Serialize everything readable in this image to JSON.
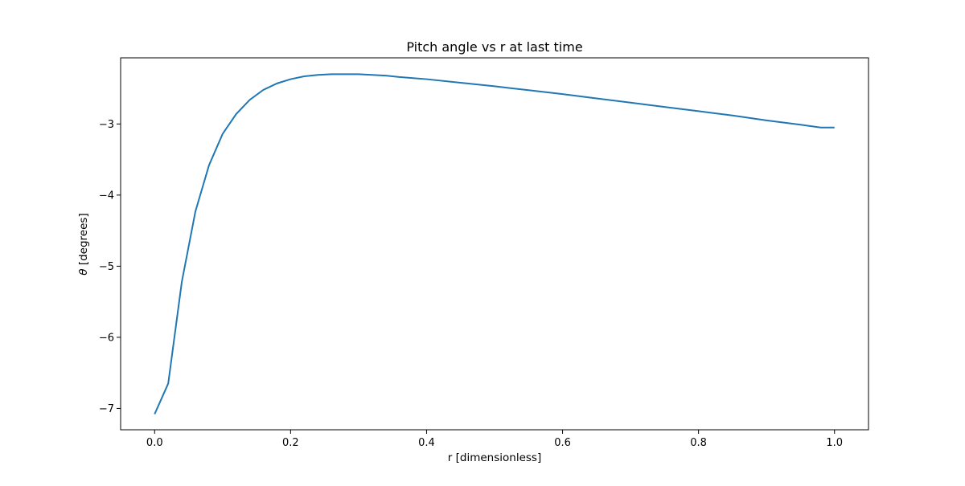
{
  "chart_data": {
    "type": "line",
    "title": "Pitch angle vs r at last time",
    "xlabel": "r [dimensionless]",
    "ylabel_symbol": "θ",
    "ylabel_text": " [degrees]",
    "xlim": [
      -0.05,
      1.05
    ],
    "ylim": [
      -7.3,
      -2.07
    ],
    "xticks": [
      0.0,
      0.2,
      0.4,
      0.6,
      0.8,
      1.0
    ],
    "xtick_labels": [
      "0.0",
      "0.2",
      "0.4",
      "0.6",
      "0.8",
      "1.0"
    ],
    "yticks": [
      -7,
      -6,
      -5,
      -4,
      -3
    ],
    "ytick_labels": [
      "−7",
      "−6",
      "−5",
      "−4",
      "−3"
    ],
    "grid": false,
    "line_color": "#1f77b4",
    "series": [
      {
        "x": [
          0.0,
          0.02,
          0.04,
          0.06,
          0.08,
          0.1,
          0.12,
          0.14,
          0.16,
          0.18,
          0.2,
          0.22,
          0.24,
          0.26,
          0.28,
          0.3,
          0.32,
          0.34,
          0.36,
          0.38,
          0.4,
          0.45,
          0.5,
          0.55,
          0.6,
          0.65,
          0.7,
          0.75,
          0.8,
          0.85,
          0.9,
          0.95,
          0.98,
          1.0
        ],
        "y": [
          -7.08,
          -6.65,
          -5.22,
          -4.23,
          -3.58,
          -3.14,
          -2.86,
          -2.66,
          -2.52,
          -2.43,
          -2.37,
          -2.33,
          -2.31,
          -2.3,
          -2.3,
          -2.3,
          -2.31,
          -2.32,
          -2.34,
          -2.355,
          -2.37,
          -2.42,
          -2.47,
          -2.525,
          -2.58,
          -2.64,
          -2.7,
          -2.76,
          -2.82,
          -2.88,
          -2.95,
          -3.01,
          -3.05,
          -3.05
        ]
      }
    ]
  }
}
